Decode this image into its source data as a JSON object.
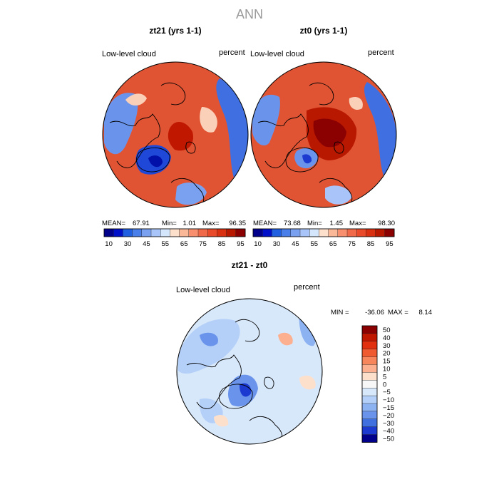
{
  "main_title": "ANN",
  "chart_data": [
    {
      "type": "heatmap",
      "projection": "north-polar-stereographic",
      "title": "zt21 (yrs 1-1)",
      "variable": "Low-level cloud",
      "units": "percent",
      "stats": {
        "mean_label": "MEAN=",
        "mean": "67.91",
        "min_label": "Min=",
        "min": "1.01",
        "max_label": "Max=",
        "max": "96.35"
      },
      "colorbar": {
        "levels": [
          10,
          20,
          30,
          40,
          45,
          50,
          55,
          60,
          65,
          70,
          75,
          80,
          85,
          90,
          95
        ],
        "tick_labels": [
          "10",
          "30",
          "45",
          "55",
          "65",
          "75",
          "85",
          "95"
        ],
        "colors": [
          "#00008b",
          "#0010c8",
          "#2060e0",
          "#4a7ee8",
          "#7aa0f0",
          "#a8c4f8",
          "#d4e6fc",
          "#fde0cc",
          "#fbb898",
          "#f89070",
          "#f06a4a",
          "#e84a2a",
          "#d83010",
          "#b81800",
          "#8b0000"
        ]
      }
    },
    {
      "type": "heatmap",
      "projection": "north-polar-stereographic",
      "title": "zt0 (yrs 1-1)",
      "variable": "Low-level cloud",
      "units": "percent",
      "stats": {
        "mean_label": "MEAN=",
        "mean": "73.68",
        "min_label": "Min=",
        "min": "1.45",
        "max_label": "Max=",
        "max": "98.30"
      },
      "colorbar": {
        "levels": [
          10,
          20,
          30,
          40,
          45,
          50,
          55,
          60,
          65,
          70,
          75,
          80,
          85,
          90,
          95
        ],
        "tick_labels": [
          "10",
          "30",
          "45",
          "55",
          "65",
          "75",
          "85",
          "95"
        ],
        "colors": [
          "#00008b",
          "#0010c8",
          "#2060e0",
          "#4a7ee8",
          "#7aa0f0",
          "#a8c4f8",
          "#d4e6fc",
          "#fde0cc",
          "#fbb898",
          "#f89070",
          "#f06a4a",
          "#e84a2a",
          "#d83010",
          "#b81800",
          "#8b0000"
        ]
      }
    },
    {
      "type": "heatmap",
      "projection": "north-polar-stereographic",
      "title": "zt21 - zt0",
      "variable": "Low-level cloud",
      "units": "percent",
      "stats": {
        "min_label": "MIN =",
        "min": "-36.06",
        "max_label": "MAX =",
        "max": "8.14"
      },
      "colorbar": {
        "levels": [
          50,
          40,
          30,
          20,
          15,
          10,
          5,
          0,
          -5,
          -10,
          -15,
          -20,
          -30,
          -40,
          -50
        ],
        "tick_labels": [
          "50",
          "40",
          "30",
          "20",
          "15",
          "10",
          "5",
          "0",
          "−5",
          "−10",
          "−15",
          "−20",
          "−30",
          "−40",
          "−50"
        ],
        "colors": [
          "#8b0000",
          "#c01800",
          "#e03010",
          "#f05a30",
          "#f8865c",
          "#fcb090",
          "#fde0cc",
          "#f7f7f7",
          "#d8e8fb",
          "#b4d0f8",
          "#8cb2f2",
          "#6a94ec",
          "#4070e0",
          "#1c3ad0",
          "#00008b"
        ]
      }
    }
  ]
}
